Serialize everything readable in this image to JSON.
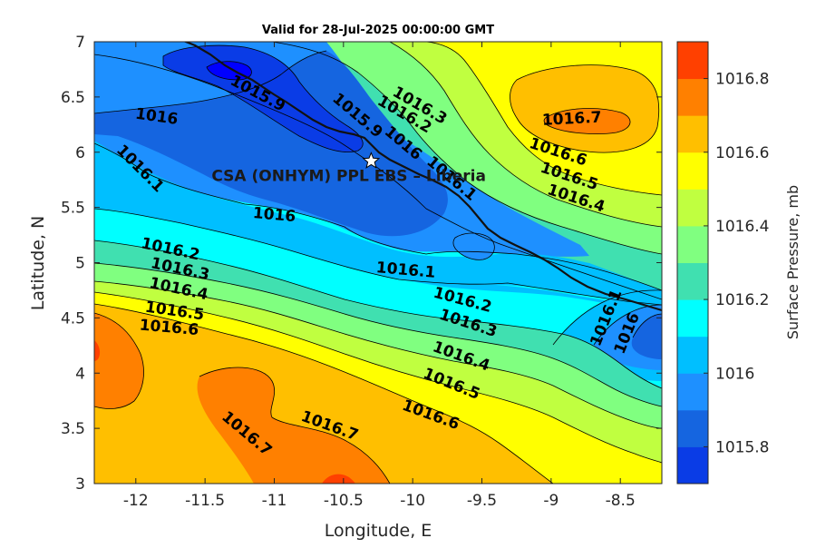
{
  "chart_data": {
    "type": "contour",
    "title": "Valid for 28-Jul-2025 00:00:00 GMT",
    "xlabel": "Longitude, E",
    "ylabel": "Latitude, N",
    "xlim": [
      -12.3,
      -8.2
    ],
    "ylim": [
      3,
      7
    ],
    "xticks": [
      "-12",
      "-11.5",
      "-11",
      "-10.5",
      "-10",
      "-9.5",
      "-9",
      "-8.5"
    ],
    "yticks": [
      "3",
      "3.5",
      "4",
      "4.5",
      "5",
      "5.5",
      "6",
      "6.5",
      "7"
    ],
    "colorbar": {
      "label": "Surface Pressure, mb",
      "ticks": [
        "1015.8",
        "1016",
        "1016.2",
        "1016.4",
        "1016.6",
        "1016.8"
      ],
      "levels": [
        1015.7,
        1015.8,
        1015.9,
        1016.0,
        1016.1,
        1016.2,
        1016.3,
        1016.4,
        1016.5,
        1016.6,
        1016.7,
        1016.8,
        1016.9
      ],
      "colors": [
        "#0000ff",
        "#0a3ce6",
        "#1565e0",
        "#1e90ff",
        "#00bfff",
        "#00ffff",
        "#40e0b0",
        "#80ff80",
        "#c0ff40",
        "#ffff00",
        "#ffbf00",
        "#ff8000",
        "#ff4000",
        "#ff0000"
      ]
    },
    "site": {
      "label": "CSA (ONHYM) PPL EBS – Liberia",
      "lon": -10.3,
      "lat": 5.92
    },
    "contour_labels": [
      {
        "text": "1015.9",
        "lon": -11.12,
        "lat": 6.53,
        "rot": 28
      },
      {
        "text": "1016",
        "lon": -11.85,
        "lat": 6.32,
        "rot": 8
      },
      {
        "text": "1015.9",
        "lon": -10.4,
        "lat": 6.33,
        "rot": 40
      },
      {
        "text": "1016.3",
        "lon": -9.95,
        "lat": 6.42,
        "rot": 30
      },
      {
        "text": "1016.2",
        "lon": -10.06,
        "lat": 6.34,
        "rot": 30
      },
      {
        "text": "1016",
        "lon": -10.07,
        "lat": 6.08,
        "rot": 40
      },
      {
        "text": "1016.1",
        "lon": -9.72,
        "lat": 5.76,
        "rot": 40
      },
      {
        "text": "1016.1",
        "lon": -11.97,
        "lat": 5.85,
        "rot": 45
      },
      {
        "text": "1016",
        "lon": -11.0,
        "lat": 5.43,
        "rot": 5
      },
      {
        "text": "1016.7",
        "lon": -8.85,
        "lat": 6.3,
        "rot": -3
      },
      {
        "text": "1016.6",
        "lon": -8.95,
        "lat": 6.0,
        "rot": 18
      },
      {
        "text": "1016.5",
        "lon": -8.87,
        "lat": 5.78,
        "rot": 18
      },
      {
        "text": "1016.4",
        "lon": -8.82,
        "lat": 5.58,
        "rot": 18
      },
      {
        "text": "1016.2",
        "lon": -11.75,
        "lat": 5.12,
        "rot": 12
      },
      {
        "text": "1016.3",
        "lon": -11.68,
        "lat": 4.94,
        "rot": 12
      },
      {
        "text": "1016.4",
        "lon": -11.69,
        "lat": 4.76,
        "rot": 12
      },
      {
        "text": "1016.5",
        "lon": -11.72,
        "lat": 4.56,
        "rot": 8
      },
      {
        "text": "1016.6",
        "lon": -11.76,
        "lat": 4.41,
        "rot": 5
      },
      {
        "text": "1016.1",
        "lon": -10.05,
        "lat": 4.93,
        "rot": 5
      },
      {
        "text": "1016.2",
        "lon": -9.64,
        "lat": 4.66,
        "rot": 15
      },
      {
        "text": "1016.3",
        "lon": -9.6,
        "lat": 4.45,
        "rot": 18
      },
      {
        "text": "1016.4",
        "lon": -9.65,
        "lat": 4.15,
        "rot": 20
      },
      {
        "text": "1016.5",
        "lon": -9.72,
        "lat": 3.9,
        "rot": 22
      },
      {
        "text": "1016.6",
        "lon": -9.87,
        "lat": 3.62,
        "rot": 20
      },
      {
        "text": "1016.7",
        "lon": -10.6,
        "lat": 3.52,
        "rot": 20
      },
      {
        "text": "1016.7",
        "lon": -11.2,
        "lat": 3.45,
        "rot": 40
      },
      {
        "text": "1016.1",
        "lon": -8.6,
        "lat": 4.5,
        "rot": -68
      },
      {
        "text": "1016",
        "lon": -8.45,
        "lat": 4.36,
        "rot": -68
      }
    ]
  }
}
